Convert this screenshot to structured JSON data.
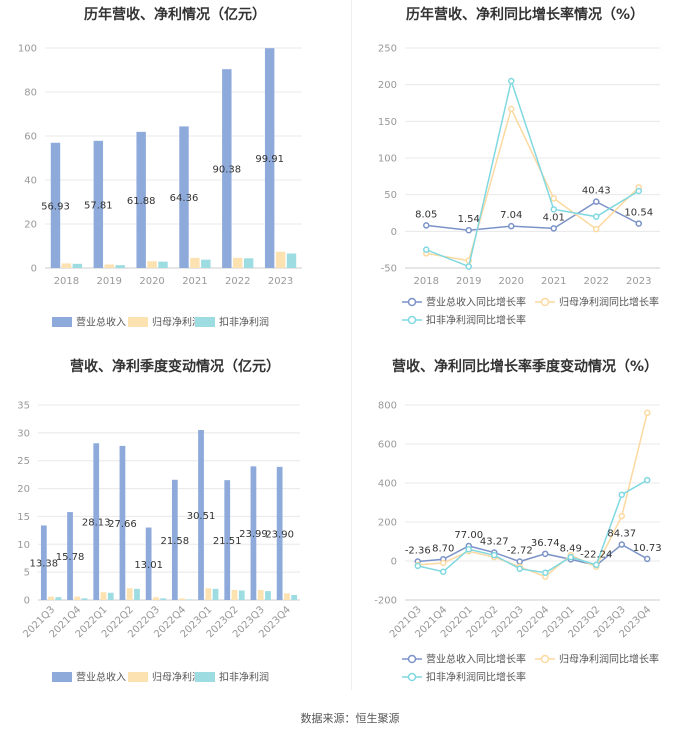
{
  "footer": "数据来源：恒生聚源",
  "colors": {
    "revenue": "#8eaadb",
    "net_profit": "#fde2b1",
    "deducted_profit": "#9ddde1",
    "revenue_line": "#7b93c8",
    "net_profit_line": "#fcd9a0",
    "deducted_profit_line": "#80d8e0",
    "grid": "#e8e8e8"
  },
  "chart_data": [
    {
      "type": "bar",
      "title": "历年营收、净利情况（亿元）",
      "categories": [
        "2018",
        "2019",
        "2020",
        "2021",
        "2022",
        "2023"
      ],
      "ylim": [
        0,
        100
      ],
      "yticks": [
        0,
        20,
        40,
        60,
        80,
        100
      ],
      "x_label_rotated": false,
      "series": [
        {
          "name": "营业总收入",
          "color_key": "revenue",
          "values": [
            56.93,
            57.81,
            61.88,
            64.36,
            90.38,
            99.91
          ],
          "labels": [
            "56.93",
            "57.81",
            "61.88",
            "64.36",
            "90.38",
            "99.91"
          ]
        },
        {
          "name": "归母净利润",
          "color_key": "net_profit",
          "values": [
            2.1,
            1.6,
            3.1,
            4.6,
            4.6,
            7.4
          ],
          "labels": []
        },
        {
          "name": "扣非净利润",
          "color_key": "deducted_profit",
          "values": [
            1.9,
            1.3,
            2.9,
            3.8,
            4.4,
            6.6
          ],
          "labels": []
        }
      ],
      "legend_position": "bottom"
    },
    {
      "type": "line",
      "title": "历年营收、净利同比增长率情况（%）",
      "categories": [
        "2018",
        "2019",
        "2020",
        "2021",
        "2022",
        "2023"
      ],
      "ylim": [
        -50,
        250
      ],
      "yticks": [
        -50,
        0,
        50,
        100,
        150,
        200,
        250
      ],
      "x_label_rotated": false,
      "series": [
        {
          "name": "营业总收入同比增长率",
          "color_key": "revenue_line",
          "values": [
            8.05,
            1.54,
            7.04,
            4.01,
            40.43,
            10.54
          ],
          "labels": [
            "8.05",
            "1.54",
            "7.04",
            "4.01",
            "40.43",
            "10.54"
          ]
        },
        {
          "name": "归母净利润同比增长率",
          "color_key": "net_profit_line",
          "values": [
            -30,
            -40,
            167,
            45,
            3,
            60
          ],
          "labels": []
        },
        {
          "name": "扣非净利润同比增长率",
          "color_key": "deducted_profit_line",
          "values": [
            -25,
            -48,
            205,
            30,
            20,
            55
          ],
          "labels": []
        }
      ],
      "legend_position": "bottom"
    },
    {
      "type": "bar",
      "title": "营收、净利季度变动情况（亿元）",
      "categories": [
        "2021Q3",
        "2021Q4",
        "2022Q1",
        "2022Q2",
        "2022Q3",
        "2022Q4",
        "2023Q1",
        "2023Q2",
        "2023Q3",
        "2023Q4"
      ],
      "ylim": [
        0,
        35
      ],
      "yticks": [
        0,
        5,
        10,
        15,
        20,
        25,
        30,
        35
      ],
      "x_label_rotated": true,
      "series": [
        {
          "name": "营业总收入",
          "color_key": "revenue",
          "values": [
            13.38,
            15.78,
            28.13,
            27.66,
            13.01,
            21.58,
            30.51,
            21.51,
            23.99,
            23.9
          ],
          "labels": [
            "13.38",
            "15.78",
            "28.13",
            "27.66",
            "13.01",
            "21.58",
            "30.51",
            "21.51",
            "23.99",
            "23.90"
          ]
        },
        {
          "name": "归母净利润",
          "color_key": "net_profit",
          "values": [
            0.6,
            0.6,
            1.4,
            2.1,
            0.5,
            0.3,
            2.1,
            1.8,
            1.8,
            1.2
          ],
          "labels": []
        },
        {
          "name": "扣非净利润",
          "color_key": "deducted_profit",
          "values": [
            0.5,
            0.3,
            1.3,
            2.0,
            0.3,
            0.1,
            2.0,
            1.7,
            1.6,
            0.9
          ],
          "labels": []
        }
      ],
      "legend_position": "bottom"
    },
    {
      "type": "line",
      "title": "营收、净利同比增长率季度变动情况（%）",
      "categories": [
        "2021Q3",
        "2021Q4",
        "2022Q1",
        "2022Q2",
        "2022Q3",
        "2022Q4",
        "2023Q1",
        "2023Q2",
        "2023Q3",
        "2023Q4"
      ],
      "ylim": [
        -200,
        800
      ],
      "yticks": [
        -200,
        0,
        200,
        400,
        600,
        800
      ],
      "x_label_rotated": true,
      "series": [
        {
          "name": "营业总收入同比增长率",
          "color_key": "revenue_line",
          "values": [
            -2.36,
            8.7,
            77.0,
            43.27,
            -2.72,
            36.74,
            8.49,
            -22.24,
            84.37,
            10.73
          ],
          "labels": [
            "-2.36",
            "8.70",
            "77.00",
            "43.27",
            "-2.72",
            "36.74",
            "8.49",
            "-22.24",
            "84.37",
            "10.73"
          ]
        },
        {
          "name": "归母净利润同比增长率",
          "color_key": "net_profit_line",
          "values": [
            -20,
            -10,
            50,
            20,
            -30,
            -80,
            30,
            -30,
            230,
            760
          ],
          "labels": []
        },
        {
          "name": "扣非净利润同比增长率",
          "color_key": "deducted_profit_line",
          "values": [
            -25,
            -55,
            60,
            30,
            -40,
            -60,
            20,
            -20,
            340,
            415
          ],
          "labels": []
        }
      ],
      "legend_position": "bottom"
    }
  ]
}
